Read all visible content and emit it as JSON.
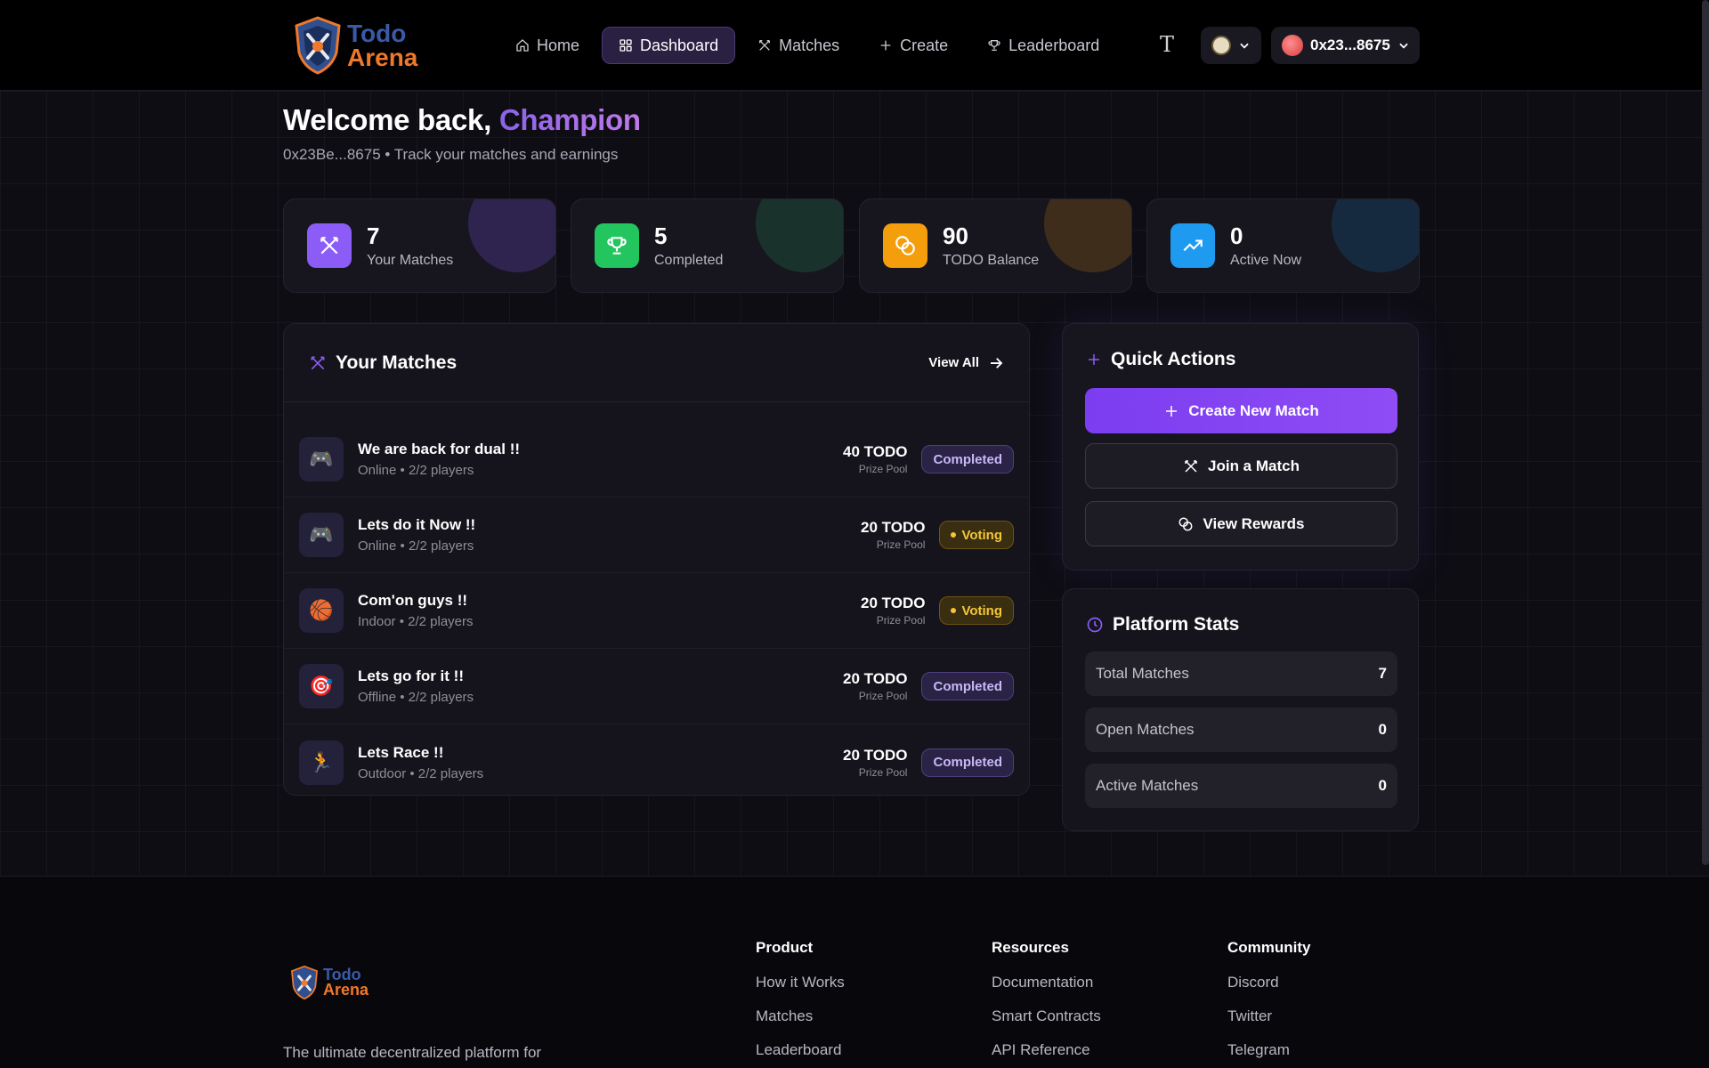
{
  "brand": {
    "line1": "Todo",
    "line2": "Arena"
  },
  "nav": [
    {
      "label": "Home",
      "icon": "home-icon"
    },
    {
      "label": "Dashboard",
      "icon": "dashboard-icon",
      "active": true
    },
    {
      "label": "Matches",
      "icon": "swords-icon"
    },
    {
      "label": "Create",
      "icon": "plus-icon"
    },
    {
      "label": "Leaderboard",
      "icon": "trophy-icon"
    }
  ],
  "header": {
    "theme_icon_glyph": "T",
    "wallet_label": "0x23...8675"
  },
  "welcome": {
    "prefix": "Welcome back, ",
    "name": "Champion",
    "subtitle": "0x23Be...8675 • Track your matches and earnings"
  },
  "stats": [
    {
      "value": "7",
      "label": "Your Matches",
      "icon": "swords-icon",
      "color": "#8b5cf6"
    },
    {
      "value": "5",
      "label": "Completed",
      "icon": "trophy-icon",
      "color": "#22c55e"
    },
    {
      "value": "90",
      "label": "TODO Balance",
      "icon": "coins-icon",
      "color": "#f59e0b"
    },
    {
      "value": "0",
      "label": "Active Now",
      "icon": "trending-up-icon",
      "color": "#1e9bf0"
    }
  ],
  "matches_panel": {
    "title": "Your Matches",
    "view_all": "View All",
    "prize_label": "Prize Pool",
    "items": [
      {
        "name": "We are back for dual !!",
        "meta": "Online • 2/2 players",
        "prize": "40 TODO",
        "status": "Completed",
        "icon": "🎮"
      },
      {
        "name": "Lets do it Now !!",
        "meta": "Online • 2/2 players",
        "prize": "20 TODO",
        "status": "Voting",
        "icon": "🎮"
      },
      {
        "name": "Com'on guys !!",
        "meta": "Indoor • 2/2 players",
        "prize": "20 TODO",
        "status": "Voting",
        "icon": "🏀"
      },
      {
        "name": "Lets go for it !!",
        "meta": "Offline • 2/2 players",
        "prize": "20 TODO",
        "status": "Completed",
        "icon": "🎯"
      },
      {
        "name": "Lets Race !!",
        "meta": "Outdoor • 2/2 players",
        "prize": "20 TODO",
        "status": "Completed",
        "icon": "🏃"
      }
    ]
  },
  "quick_actions": {
    "title": "Quick Actions",
    "create": "Create New Match",
    "join": "Join a Match",
    "rewards": "View Rewards"
  },
  "platform_stats": {
    "title": "Platform Stats",
    "rows": [
      {
        "label": "Total Matches",
        "value": "7"
      },
      {
        "label": "Open Matches",
        "value": "0"
      },
      {
        "label": "Active Matches",
        "value": "0"
      }
    ]
  },
  "footer": {
    "description": "The ultimate decentralized platform for",
    "columns": [
      {
        "title": "Product",
        "links": [
          "How it Works",
          "Matches",
          "Leaderboard"
        ]
      },
      {
        "title": "Resources",
        "links": [
          "Documentation",
          "Smart Contracts",
          "API Reference"
        ]
      },
      {
        "title": "Community",
        "links": [
          "Discord",
          "Twitter",
          "Telegram"
        ]
      }
    ]
  }
}
